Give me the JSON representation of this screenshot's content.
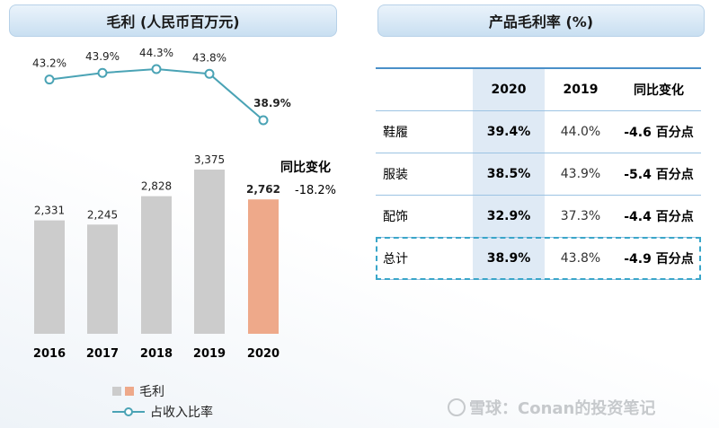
{
  "left_panel": {
    "title": "毛利 (人民币百万元)",
    "change_title": "同比变化",
    "change_value": "-18.2%",
    "legend": {
      "bar_label": "毛利",
      "line_label": "占收入比率"
    }
  },
  "right_panel": {
    "title": "产品毛利率 (%)",
    "columns": [
      "",
      "2020",
      "2019",
      "同比变化"
    ],
    "rows": [
      {
        "label": "鞋履",
        "v2020": "39.4%",
        "v2019": "44.0%",
        "change": "-4.6 百分点"
      },
      {
        "label": "服装",
        "v2020": "38.5%",
        "v2019": "43.9%",
        "change": "-5.4 百分点"
      },
      {
        "label": "配饰",
        "v2020": "32.9%",
        "v2019": "37.3%",
        "change": "-4.4 百分点"
      },
      {
        "label": "总计",
        "v2020": "38.9%",
        "v2019": "43.8%",
        "change": "-4.9 百分点"
      }
    ]
  },
  "watermark": "雪球：Conan的投资笔记",
  "colors": {
    "bar_gray": "#cccccc",
    "bar_highlight": "#eea98a",
    "line": "#4aa3b5",
    "header_bg": "#cfe2f3",
    "table_highlight": "#dfeaf5",
    "total_box": "#3aa6c9"
  },
  "chart_data": {
    "type": "bar",
    "title": "毛利 (人民币百万元)",
    "categories": [
      "2016",
      "2017",
      "2018",
      "2019",
      "2020"
    ],
    "series": [
      {
        "name": "毛利",
        "type": "bar",
        "values": [
          2331,
          2245,
          2828,
          3375,
          2762
        ],
        "labels": [
          "2,331",
          "2,245",
          "2,828",
          "3,375",
          "2,762"
        ]
      },
      {
        "name": "占收入比率",
        "type": "line",
        "values": [
          43.2,
          43.9,
          44.3,
          43.8,
          38.9
        ],
        "labels": [
          "43.2%",
          "43.9%",
          "44.3%",
          "43.8%",
          "38.9%"
        ]
      }
    ],
    "bar_ylim": [
      0,
      3600
    ],
    "line_ylim": [
      38,
      45
    ],
    "highlight_index": 4,
    "legend": "bottom-left"
  }
}
